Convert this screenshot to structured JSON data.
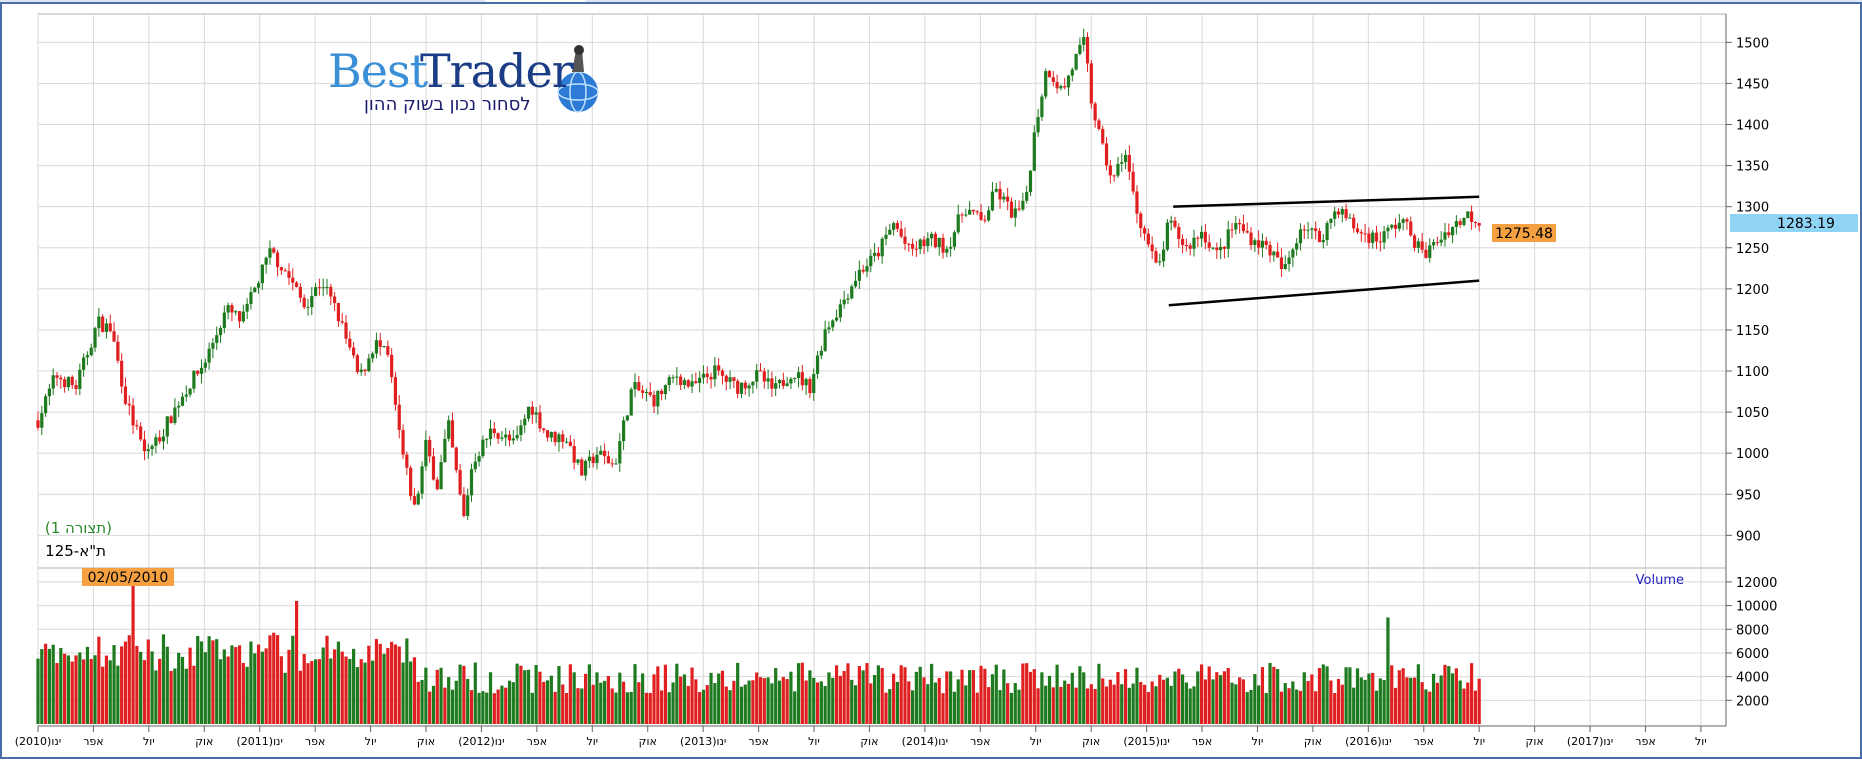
{
  "logo": {
    "brand_part1": "Best",
    "brand_part2": "Trader",
    "tagline": "לסחור נכון בשוק ההון"
  },
  "labels": {
    "pattern": "(תצורה 1)",
    "index": "ת\"א-125",
    "volume": "Volume",
    "last_price": "1283.19",
    "price_marker": "1275.48",
    "volume_date": "02/05/2010"
  },
  "colors": {
    "up": "#1e7a1e",
    "down": "#e02020",
    "grid": "#d8d8d8",
    "frame": "#4a6ea8",
    "last_price_bg": "#8fd3f5",
    "marker_bg": "#f5a142",
    "pattern_text": "#2a8a2a"
  },
  "chart_data": [
    {
      "type": "candlestick",
      "title": "ת\"א-125",
      "ylim": [
        870,
        1515
      ],
      "yticks": [
        900,
        950,
        1000,
        1050,
        1100,
        1150,
        1200,
        1250,
        1300,
        1350,
        1400,
        1450,
        1500
      ],
      "x_tick_labels": [
        "(2010)ינו",
        "אפר",
        "יול",
        "אוק",
        "(2011)ינו",
        "אפר",
        "יול",
        "אוק",
        "(2012)ינו",
        "אפר",
        "יול",
        "אוק",
        "(2013)ינו",
        "אפר",
        "יול",
        "אוק",
        "(2014)ינו",
        "אפר",
        "יול",
        "אוק",
        "(2015)ינו",
        "אפר",
        "יול",
        "אוק",
        "(2016)ינו",
        "אפר",
        "יול",
        "אוק",
        "(2017)ינו",
        "אפר",
        "יול"
      ],
      "x_range": [
        2010.0,
        2017.55
      ],
      "close_path": [
        [
          2010.0,
          1040
        ],
        [
          2010.08,
          1095
        ],
        [
          2010.17,
          1080
        ],
        [
          2010.27,
          1160
        ],
        [
          2010.33,
          1150
        ],
        [
          2010.4,
          1060
        ],
        [
          2010.48,
          1000
        ],
        [
          2010.55,
          1020
        ],
        [
          2010.65,
          1070
        ],
        [
          2010.75,
          1110
        ],
        [
          2010.85,
          1175
        ],
        [
          2010.92,
          1160
        ],
        [
          2011.0,
          1215
        ],
        [
          2011.05,
          1245
        ],
        [
          2011.12,
          1220
        ],
        [
          2011.2,
          1180
        ],
        [
          2011.28,
          1210
        ],
        [
          2011.35,
          1170
        ],
        [
          2011.45,
          1090
        ],
        [
          2011.52,
          1135
        ],
        [
          2011.58,
          1115
        ],
        [
          2011.62,
          1040
        ],
        [
          2011.65,
          990
        ],
        [
          2011.7,
          930
        ],
        [
          2011.75,
          1010
        ],
        [
          2011.8,
          960
        ],
        [
          2011.85,
          1035
        ],
        [
          2011.92,
          920
        ],
        [
          2011.96,
          990
        ],
        [
          2012.05,
          1030
        ],
        [
          2012.15,
          1010
        ],
        [
          2012.22,
          1060
        ],
        [
          2012.3,
          1020
        ],
        [
          2012.38,
          1020
        ],
        [
          2012.45,
          975
        ],
        [
          2012.52,
          1000
        ],
        [
          2012.6,
          985
        ],
        [
          2012.68,
          1080
        ],
        [
          2012.78,
          1065
        ],
        [
          2012.88,
          1095
        ],
        [
          2012.95,
          1080
        ],
        [
          2013.05,
          1100
        ],
        [
          2013.15,
          1080
        ],
        [
          2013.25,
          1095
        ],
        [
          2013.32,
          1075
        ],
        [
          2013.4,
          1100
        ],
        [
          2013.48,
          1080
        ],
        [
          2013.55,
          1150
        ],
        [
          2013.62,
          1180
        ],
        [
          2013.7,
          1220
        ],
        [
          2013.78,
          1240
        ],
        [
          2013.86,
          1280
        ],
        [
          2013.93,
          1245
        ],
        [
          2014.02,
          1260
        ],
        [
          2014.1,
          1250
        ],
        [
          2014.18,
          1300
        ],
        [
          2014.26,
          1280
        ],
        [
          2014.32,
          1320
        ],
        [
          2014.4,
          1290
        ],
        [
          2014.45,
          1300
        ],
        [
          2014.5,
          1400
        ],
        [
          2014.55,
          1470
        ],
        [
          2014.62,
          1440
        ],
        [
          2014.68,
          1480
        ],
        [
          2014.72,
          1500
        ],
        [
          2014.75,
          1430
        ],
        [
          2014.8,
          1370
        ],
        [
          2014.85,
          1330
        ],
        [
          2014.9,
          1370
        ],
        [
          2014.95,
          1300
        ],
        [
          2015.0,
          1260
        ],
        [
          2015.05,
          1220
        ],
        [
          2015.1,
          1280
        ],
        [
          2015.18,
          1250
        ],
        [
          2015.25,
          1270
        ],
        [
          2015.32,
          1240
        ],
        [
          2015.4,
          1280
        ],
        [
          2015.48,
          1260
        ],
        [
          2015.55,
          1250
        ],
        [
          2015.62,
          1220
        ],
        [
          2015.7,
          1280
        ],
        [
          2015.78,
          1260
        ],
        [
          2015.86,
          1300
        ],
        [
          2015.95,
          1270
        ],
        [
          2016.05,
          1260
        ],
        [
          2016.15,
          1285
        ],
        [
          2016.25,
          1240
        ],
        [
          2016.35,
          1270
        ],
        [
          2016.45,
          1290
        ],
        [
          2016.5,
          1283
        ]
      ],
      "last_price": 1283.19,
      "marker_price": 1275.48,
      "annotations": [
        {
          "text": "(תצורה 1)",
          "kind": "pattern"
        },
        {
          "type": "trendline",
          "points": [
            [
              2015.12,
              1300
            ],
            [
              2016.5,
              1312
            ]
          ]
        },
        {
          "type": "trendline",
          "points": [
            [
              2015.1,
              1180
            ],
            [
              2016.5,
              1210
            ]
          ]
        }
      ]
    },
    {
      "type": "bar",
      "title": "Volume",
      "ylim": [
        0,
        12500
      ],
      "yticks": [
        2000,
        4000,
        6000,
        8000,
        10000,
        12000
      ],
      "highlight": {
        "date": "02/05/2010",
        "value": 12500
      }
    }
  ]
}
